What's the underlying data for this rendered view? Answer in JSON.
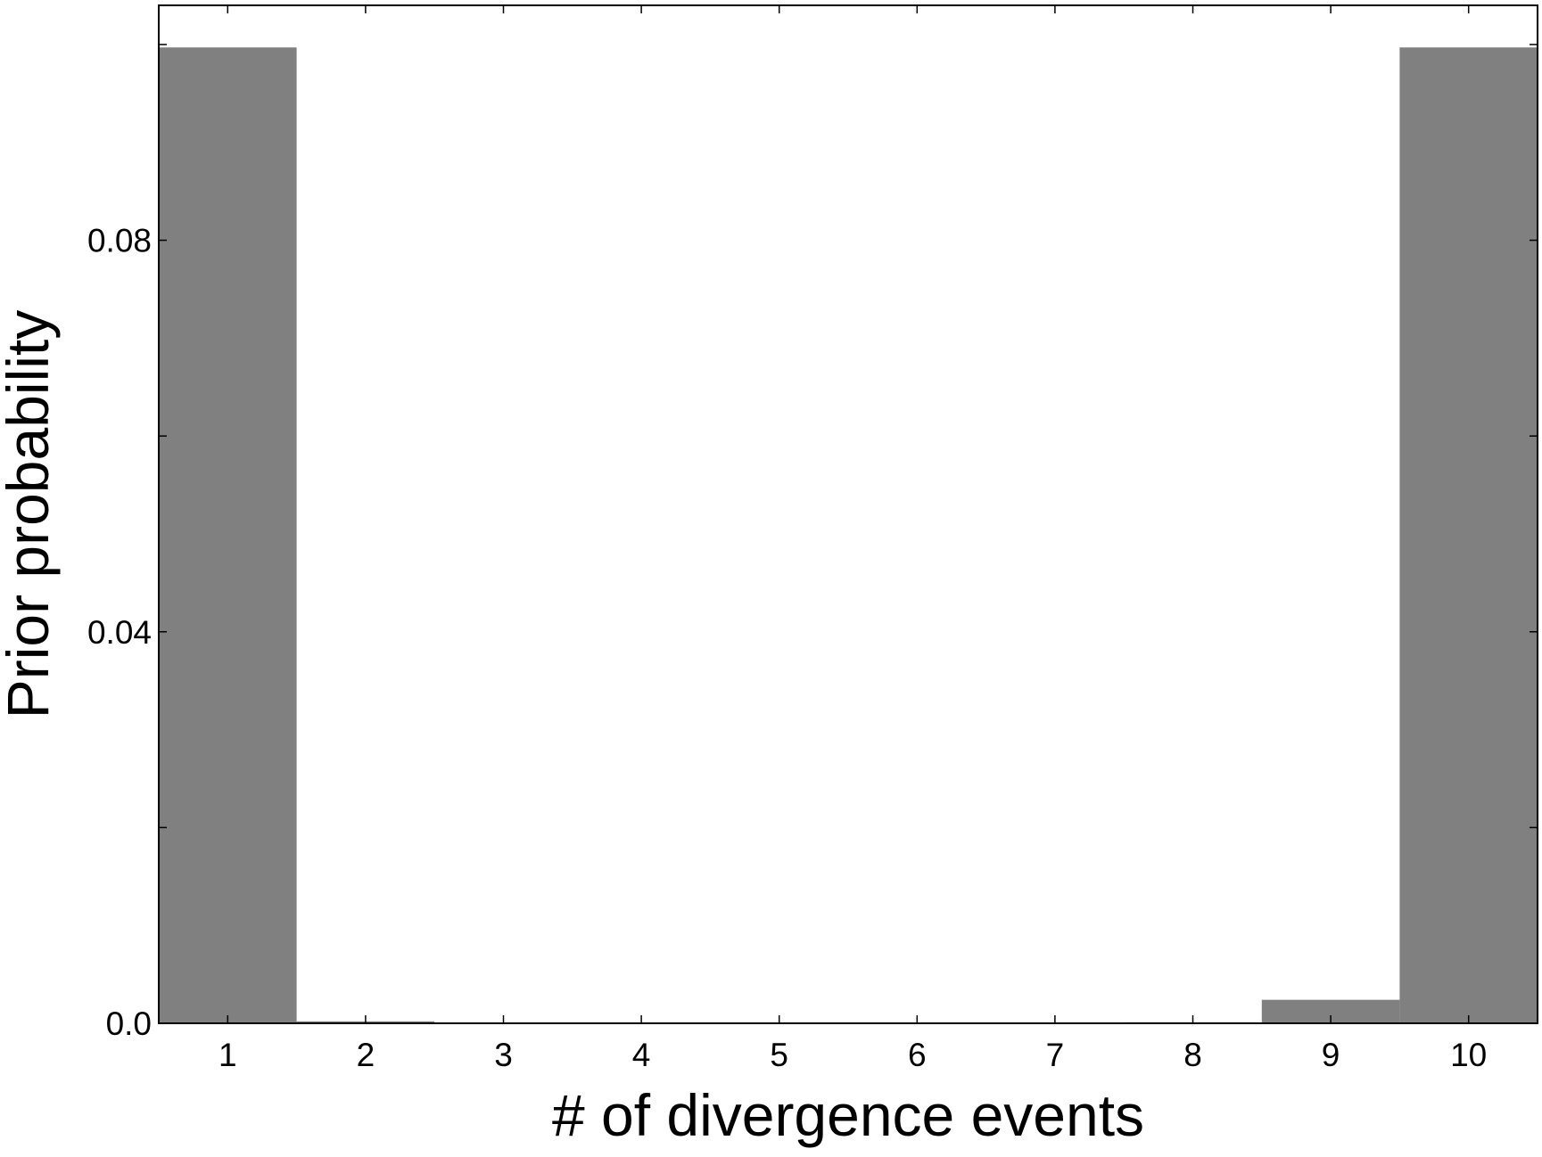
{
  "chart_data": {
    "type": "bar",
    "title": "",
    "xlabel": "# of divergence events",
    "ylabel": "Prior probability",
    "categories": [
      "1",
      "2",
      "3",
      "4",
      "5",
      "6",
      "7",
      "8",
      "9",
      "10"
    ],
    "x": [
      1,
      2,
      3,
      4,
      5,
      6,
      7,
      8,
      9,
      10
    ],
    "values": [
      0.0997,
      0.0002,
      0.0,
      0.0,
      0.0,
      0.0,
      0.0,
      0.0001,
      0.0024,
      0.0997
    ],
    "xlim": [
      0.5,
      10.5
    ],
    "ylim": [
      0,
      0.104
    ],
    "yticks": [
      0,
      0.02,
      0.04,
      0.06,
      0.08,
      0.1
    ],
    "ytick_labels": [
      "0.0",
      "",
      "0.04",
      "",
      "0.08",
      ""
    ],
    "xtick_labels": [
      "1",
      "2",
      "3",
      "4",
      "5",
      "6",
      "7",
      "8",
      "9",
      "10"
    ],
    "bar_color": "#808080",
    "grid": false,
    "legend": "none"
  }
}
